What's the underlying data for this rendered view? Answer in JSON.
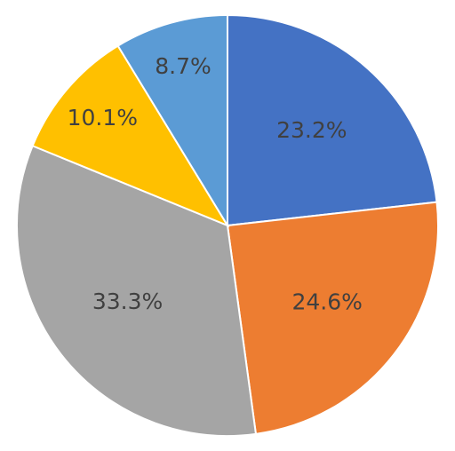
{
  "chart_data": {
    "type": "pie",
    "values": [
      23.2,
      24.6,
      33.3,
      10.1,
      8.7
    ],
    "value_labels": [
      "23.2%",
      "24.6%",
      "33.3%",
      "10.1%",
      "8.7%"
    ],
    "colors": [
      "#4472c4",
      "#ed7d31",
      "#a5a5a5",
      "#ffc000",
      "#5b9bd5"
    ]
  }
}
